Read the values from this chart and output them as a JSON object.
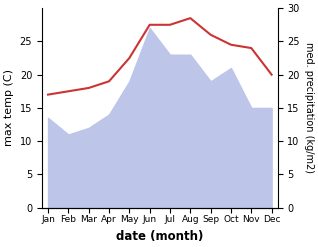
{
  "months": [
    "Jan",
    "Feb",
    "Mar",
    "Apr",
    "May",
    "Jun",
    "Jul",
    "Aug",
    "Sep",
    "Oct",
    "Nov",
    "Dec"
  ],
  "max_temp": [
    17.0,
    17.5,
    18.0,
    19.0,
    22.5,
    27.5,
    27.5,
    28.5,
    26.0,
    24.5,
    24.0,
    20.0
  ],
  "precipitation": [
    13.5,
    11.0,
    12.0,
    14.0,
    19.0,
    27.0,
    23.0,
    23.0,
    19.0,
    21.0,
    15.0,
    15.0
  ],
  "temp_color": "#cc3333",
  "precip_fill_color": "#bdc5e8",
  "ylim": [
    0,
    30
  ],
  "left_yticks": [
    0,
    5,
    10,
    15,
    20,
    25
  ],
  "right_yticks": [
    0,
    5,
    10,
    15,
    20,
    25,
    30
  ],
  "ylabel_left": "max temp (C)",
  "ylabel_right": "med. precipitation (kg/m2)",
  "xlabel": "date (month)",
  "bg_color": "#ffffff"
}
